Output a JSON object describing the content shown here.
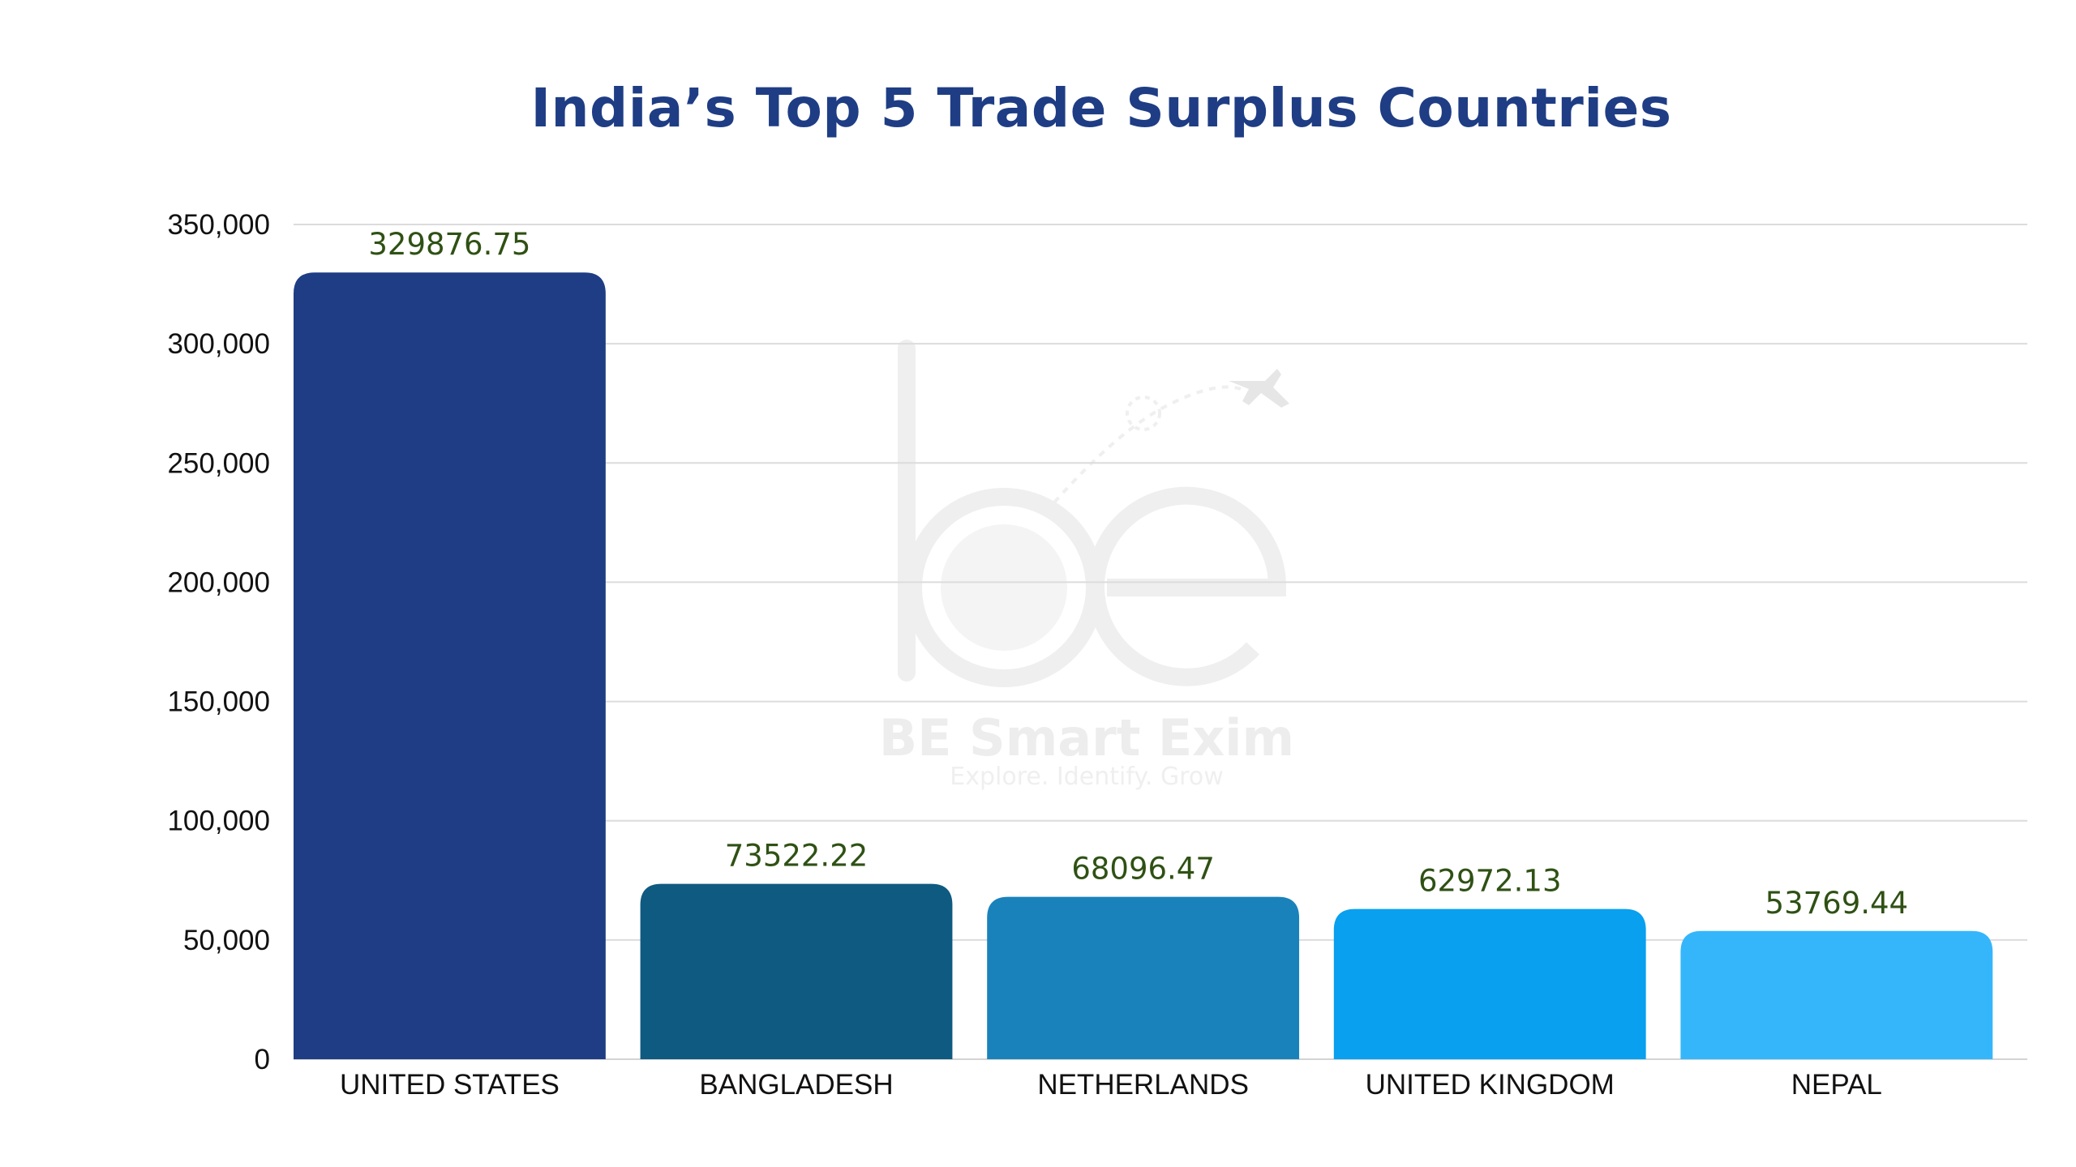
{
  "chart_data": {
    "type": "bar",
    "title": "India’s Top 5 Trade Surplus Countries",
    "xlabel": "",
    "ylabel": "",
    "categories": [
      "UNITED STATES",
      "BANGLADESH",
      "NETHERLANDS",
      "UNITED KINGDOM",
      "NEPAL"
    ],
    "values": [
      329876.75,
      73522.22,
      68096.47,
      62972.13,
      53769.44
    ],
    "data_labels": [
      "329876.75",
      "73522.22",
      "68096.47",
      "62972.13",
      "53769.44"
    ],
    "colors": [
      "#1e3d84",
      "#0f5a81",
      "#1a82bb",
      "#08a0ef",
      "#35b6fb"
    ],
    "ylim": [
      0,
      350000
    ],
    "yticks": [
      0,
      50000,
      100000,
      150000,
      200000,
      250000,
      300000,
      350000
    ],
    "ytick_labels": [
      "0",
      "50,000",
      "100,000",
      "150,000",
      "200,000",
      "250,000",
      "300,000",
      "350,000"
    ],
    "grid": true,
    "legend": "none",
    "title_color": "#1e3d84",
    "data_label_color": "#2f5114"
  },
  "watermark": {
    "logo_letters": "be",
    "brand": "BE Smart Exim",
    "tagline": "Explore. Identify. Grow"
  }
}
